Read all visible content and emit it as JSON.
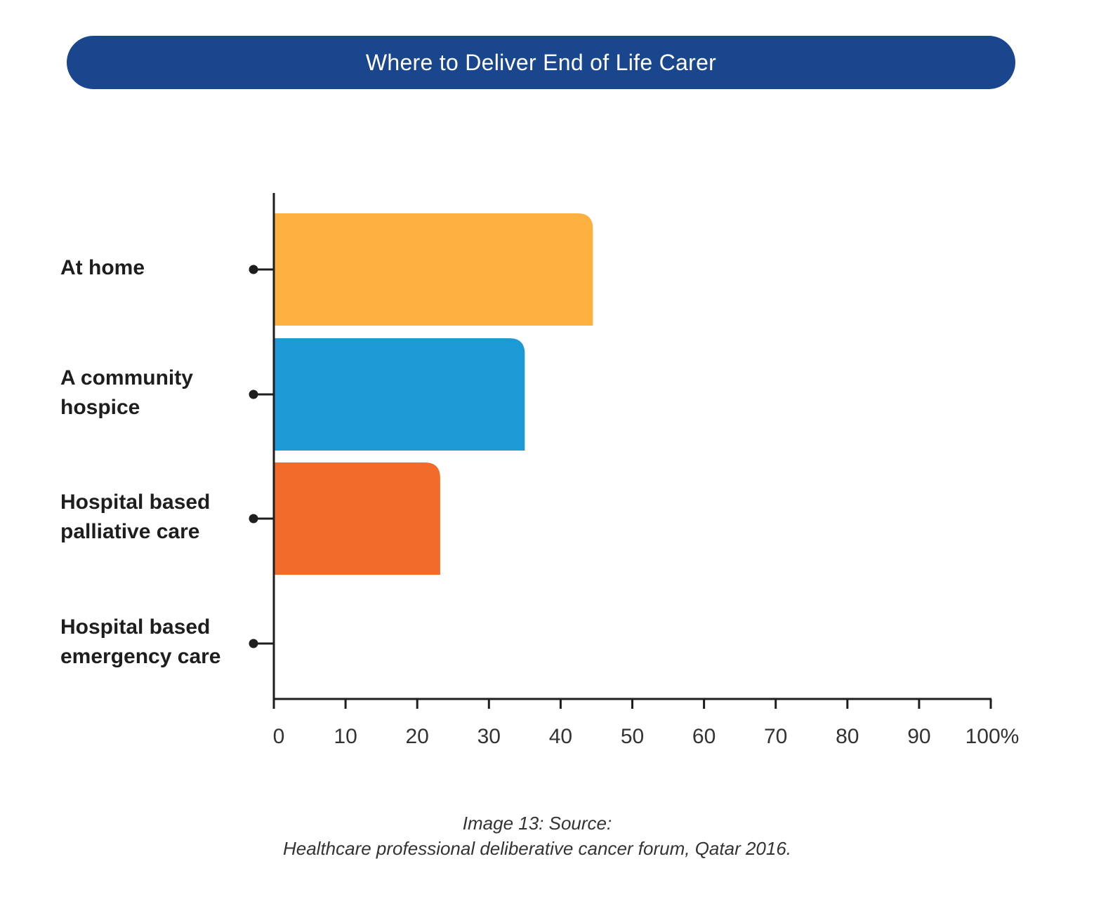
{
  "chart_data": {
    "type": "bar",
    "orientation": "horizontal",
    "title": "Where to Deliver End of Life Carer",
    "categories": [
      [
        "At home"
      ],
      [
        "A community",
        "hospice"
      ],
      [
        "Hospital based",
        "palliative care"
      ],
      [
        "Hospital based",
        "emergency care"
      ]
    ],
    "values": [
      44.5,
      35,
      23.2,
      0
    ],
    "colors": [
      "#fbb040",
      "#1d9ad6",
      "#f26b2b",
      "#cccccc"
    ],
    "xlim": [
      0,
      100
    ],
    "x_ticks": [
      "0",
      "10",
      "20",
      "30",
      "40",
      "50",
      "60",
      "70",
      "80",
      "90",
      "100%"
    ],
    "grid": false,
    "legend": "none"
  },
  "caption": {
    "line1": "Image 13: Source:",
    "line2": "Healthcare professional deliberative cancer forum, Qatar 2016."
  },
  "colors": {
    "title_bg": "#1a468d",
    "axis": "#1e1e1e"
  }
}
